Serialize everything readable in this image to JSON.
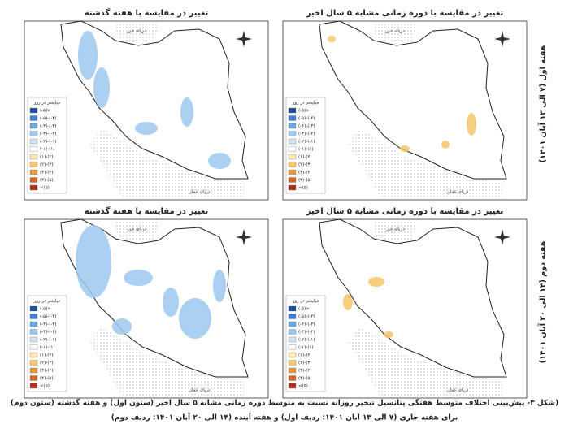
{
  "panels": [
    {
      "title": "تغییر در مقایسه با هفته گذشته"
    },
    {
      "title": "تغییر در مقایسه با دوره زمانی مشابه ۵ سال اخیر"
    },
    {
      "title": "تغییر در مقایسه با هفته گذشته"
    },
    {
      "title": "تغییر در مقایسه با دوره زمانی مشابه ۵ سال اخیر"
    }
  ],
  "row_labels": [
    "هفته اول (۷ الی ۱۳ آبان ۱۴۰۱)",
    "هفته دوم (۱۴ الی ۲۰ آبان ۱۴۰۱)"
  ],
  "seas": {
    "north": "دریای خزر",
    "south": "دریای عمان"
  },
  "legend": {
    "title": "میلیمتر در روز",
    "items": [
      {
        "label": "(-۵)>",
        "color": "#1f4fa0"
      },
      {
        "label": "(-۵)-(-۴)",
        "color": "#3f7fd0"
      },
      {
        "label": "(-۴)-(-۳)",
        "color": "#6aa8e0"
      },
      {
        "label": "(-۳)-(-۲)",
        "color": "#9cc8ee"
      },
      {
        "label": "(-۲)-(-۱)",
        "color": "#cfe4f7"
      },
      {
        "label": "(-۱)-(۱)",
        "color": "#ffffff"
      },
      {
        "label": "(۱)-(۲)",
        "color": "#fde6b0"
      },
      {
        "label": "(۲)-(۳)",
        "color": "#f6c66a"
      },
      {
        "label": "(۳)-(۴)",
        "color": "#e89a3a"
      },
      {
        "label": "(۴)-(۵)",
        "color": "#d0662a"
      },
      {
        "label": "<(۵)",
        "color": "#b03020"
      }
    ]
  },
  "caption": [
    "(شکل ۳- پیش‌بینی اختلاف متوسط هفتگی پتانسیل تبخیر روزانه نسبت به متوسط دوره زمانی مشابه ۵ سال اخیر (ستون اول) و هفته گذشته (ستون دوم)",
    "برای هفته جاری (۷ الی ۱۳ آبان ۱۴۰۱: ردیف اول) و هفته آینده (۱۴ الی ۲۰ آبان ۱۴۰۱: ردیف دوم)"
  ]
}
